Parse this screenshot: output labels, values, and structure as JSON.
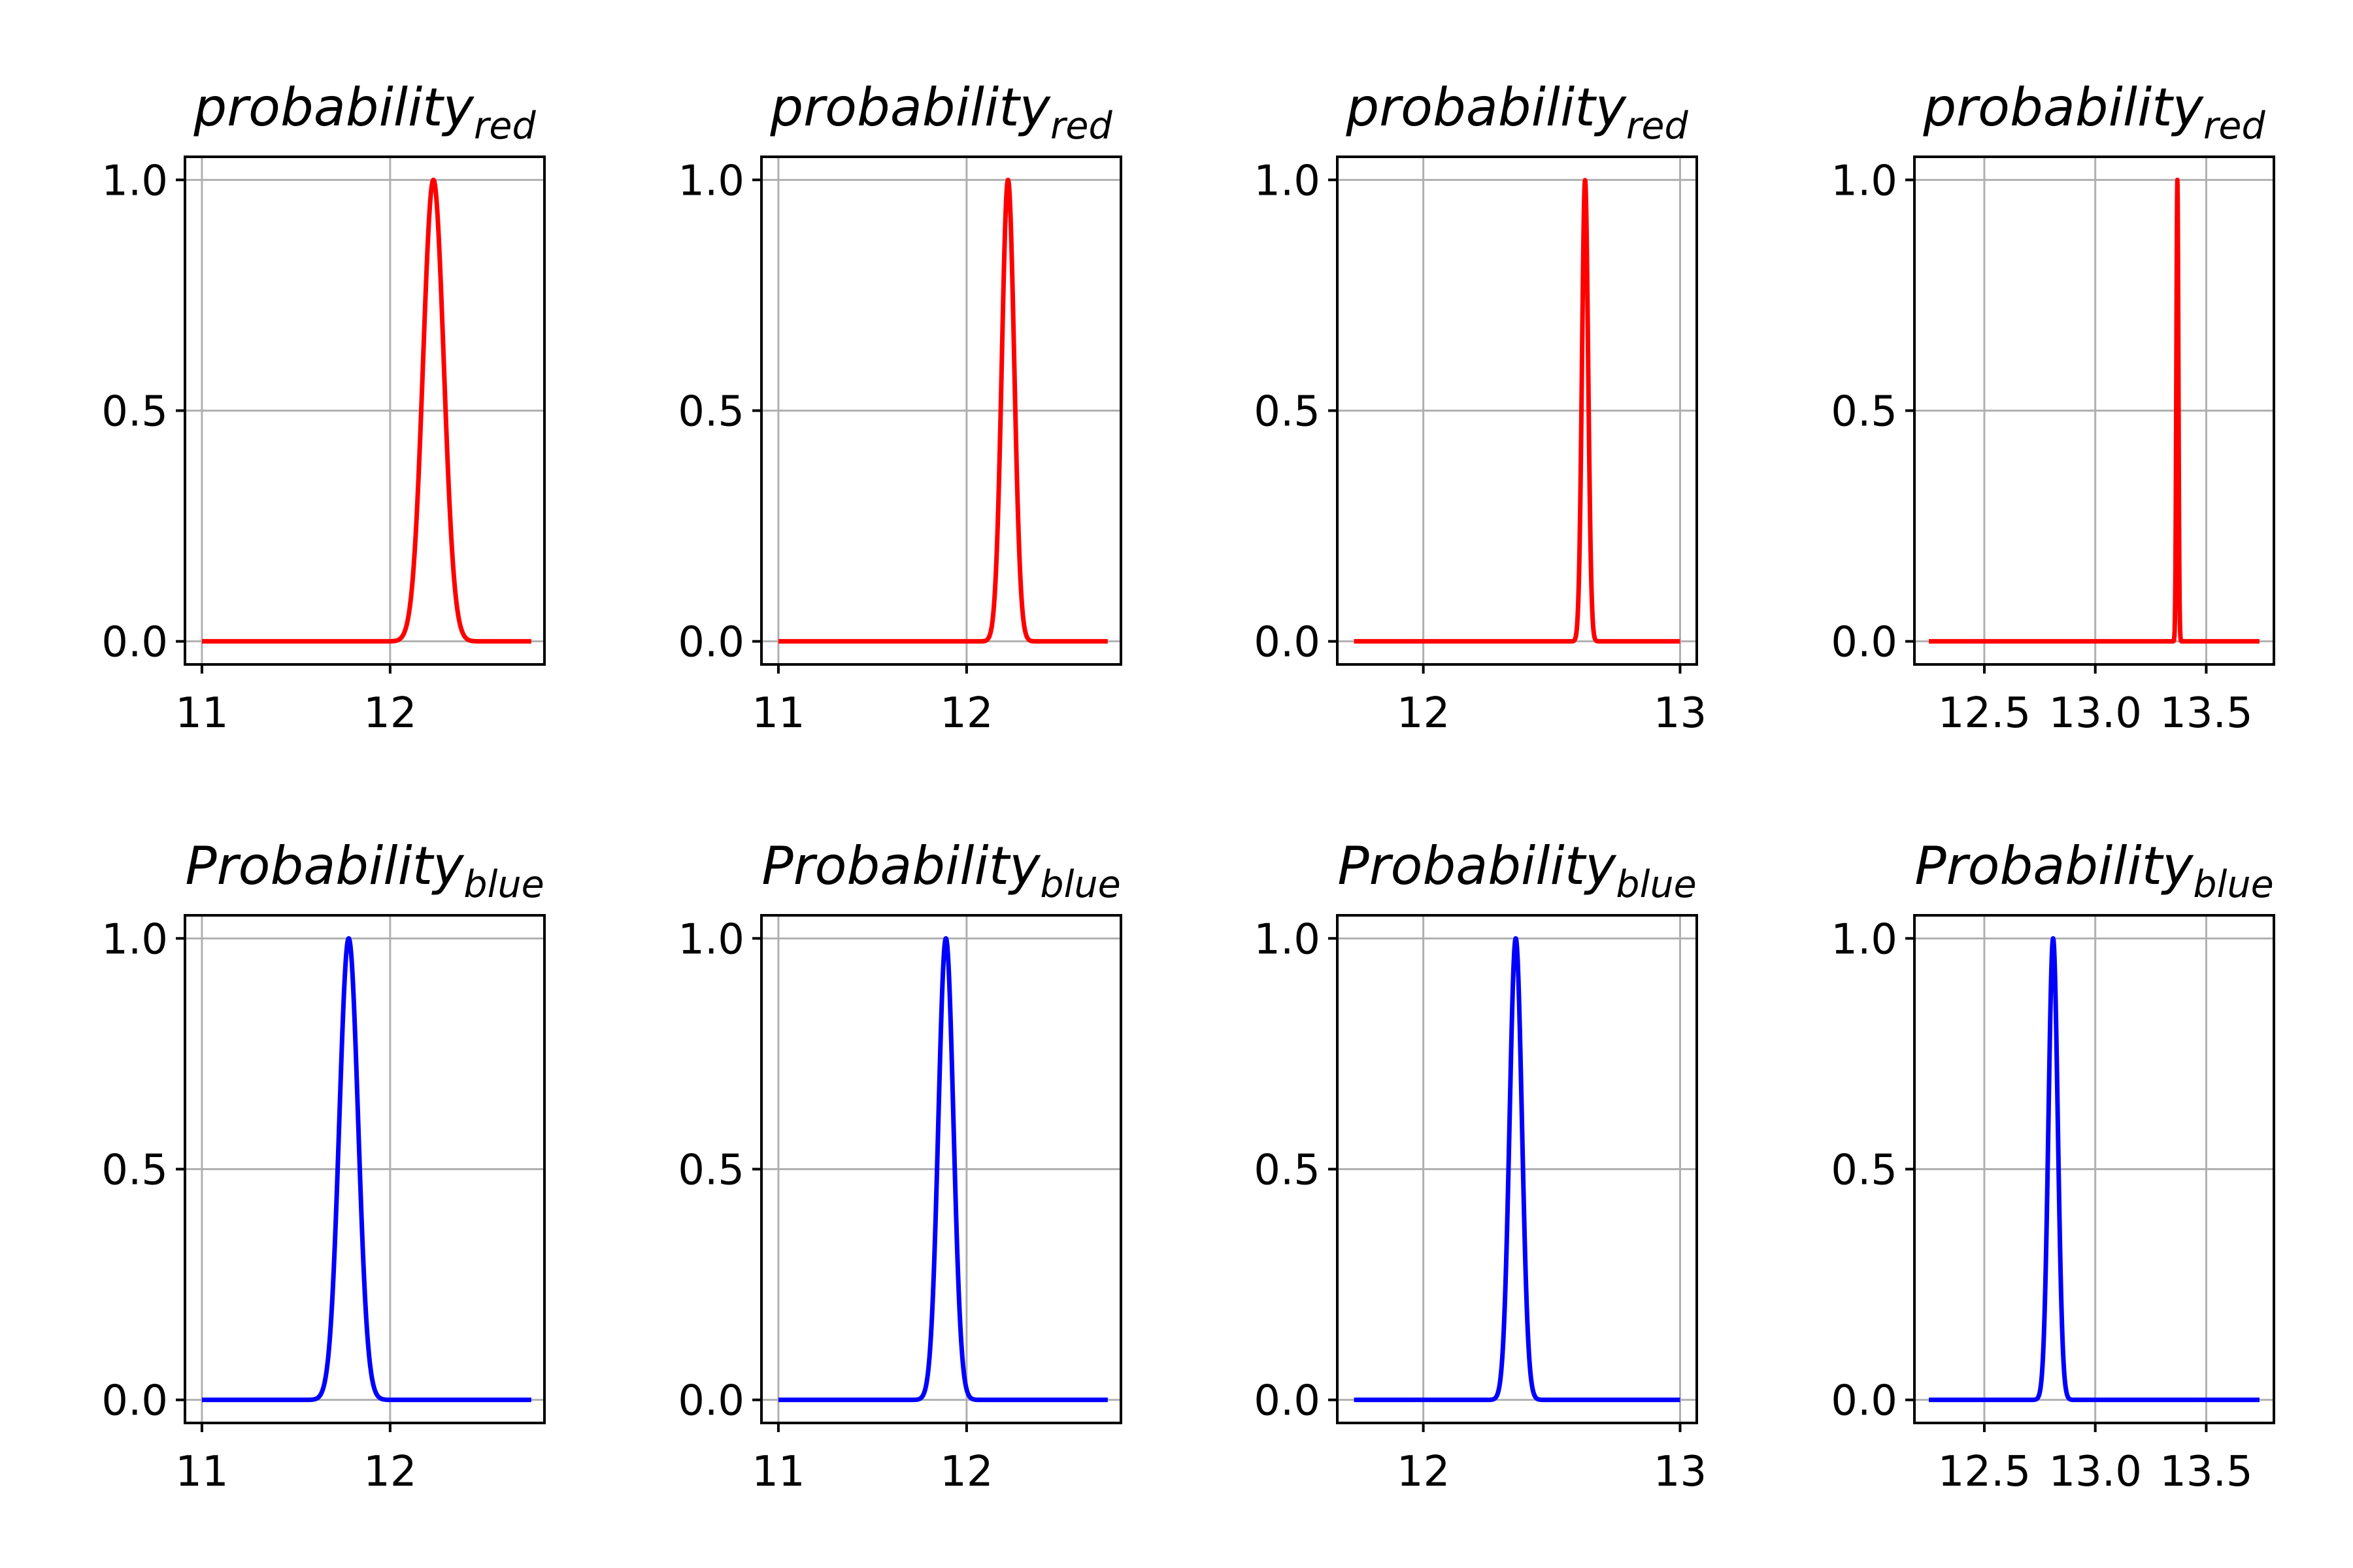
{
  "chart_data": [
    {
      "type": "line",
      "row": 0,
      "col": 0,
      "title": {
        "main": "probability",
        "subscript": "red"
      },
      "color": "#ff0000",
      "xlim": [
        10.91,
        12.82
      ],
      "ylim": [
        -0.05,
        1.05
      ],
      "xticks": [
        {
          "value": 11,
          "label": "11"
        },
        {
          "value": 12,
          "label": "12"
        }
      ],
      "yticks": [
        {
          "value": 0.0,
          "label": "0.0"
        },
        {
          "value": 0.5,
          "label": "0.5"
        },
        {
          "value": 1.0,
          "label": "1.0"
        }
      ],
      "grid": true,
      "curve": {
        "x_start": 11.0,
        "x_end": 12.75,
        "peak_x": 12.23,
        "peak_y": 1.0,
        "sigma": 0.055
      }
    },
    {
      "type": "line",
      "row": 0,
      "col": 1,
      "title": {
        "main": "probability",
        "subscript": "red"
      },
      "color": "#ff0000",
      "xlim": [
        10.91,
        12.82
      ],
      "ylim": [
        -0.05,
        1.05
      ],
      "xticks": [
        {
          "value": 11,
          "label": "11"
        },
        {
          "value": 12,
          "label": "12"
        }
      ],
      "yticks": [
        {
          "value": 0.0,
          "label": "0.0"
        },
        {
          "value": 0.5,
          "label": "0.5"
        },
        {
          "value": 1.0,
          "label": "1.0"
        }
      ],
      "grid": true,
      "curve": {
        "x_start": 11.0,
        "x_end": 12.75,
        "peak_x": 12.22,
        "peak_y": 1.0,
        "sigma": 0.033
      }
    },
    {
      "type": "line",
      "row": 0,
      "col": 2,
      "title": {
        "main": "probability",
        "subscript": "red"
      },
      "color": "#ff0000",
      "xlim": [
        11.665,
        13.065
      ],
      "ylim": [
        -0.05,
        1.05
      ],
      "xticks": [
        {
          "value": 12,
          "label": "12"
        },
        {
          "value": 13,
          "label": "13"
        }
      ],
      "yticks": [
        {
          "value": 0.0,
          "label": "0.0"
        },
        {
          "value": 0.5,
          "label": "0.5"
        },
        {
          "value": 1.0,
          "label": "1.0"
        }
      ],
      "grid": true,
      "curve": {
        "x_start": 11.73,
        "x_end": 13.0,
        "peak_x": 12.63,
        "peak_y": 1.0,
        "sigma": 0.012
      }
    },
    {
      "type": "line",
      "row": 0,
      "col": 3,
      "title": {
        "main": "probability",
        "subscript": "red"
      },
      "color": "#ff0000",
      "xlim": [
        12.185,
        13.805
      ],
      "ylim": [
        -0.05,
        1.05
      ],
      "xticks": [
        {
          "value": 12.5,
          "label": "12.5"
        },
        {
          "value": 13.0,
          "label": "13.0"
        },
        {
          "value": 13.5,
          "label": "13.5"
        }
      ],
      "yticks": [
        {
          "value": 0.0,
          "label": "0.0"
        },
        {
          "value": 0.5,
          "label": "0.5"
        },
        {
          "value": 1.0,
          "label": "1.0"
        }
      ],
      "grid": true,
      "curve": {
        "x_start": 12.25,
        "x_end": 13.74,
        "peak_x": 13.37,
        "peak_y": 1.0,
        "sigma": 0.0045
      }
    },
    {
      "type": "line",
      "row": 1,
      "col": 0,
      "title": {
        "main": "Probability",
        "subscript": "blue"
      },
      "color": "#0000ff",
      "xlim": [
        10.91,
        12.82
      ],
      "ylim": [
        -0.05,
        1.05
      ],
      "xticks": [
        {
          "value": 11,
          "label": "11"
        },
        {
          "value": 12,
          "label": "12"
        }
      ],
      "yticks": [
        {
          "value": 0.0,
          "label": "0.0"
        },
        {
          "value": 0.5,
          "label": "0.5"
        },
        {
          "value": 1.0,
          "label": "1.0"
        }
      ],
      "grid": true,
      "curve": {
        "x_start": 11.0,
        "x_end": 12.75,
        "peak_x": 11.78,
        "peak_y": 1.0,
        "sigma": 0.05
      }
    },
    {
      "type": "line",
      "row": 1,
      "col": 1,
      "title": {
        "main": "Probability",
        "subscript": "blue"
      },
      "color": "#0000ff",
      "xlim": [
        10.91,
        12.82
      ],
      "ylim": [
        -0.05,
        1.05
      ],
      "xticks": [
        {
          "value": 11,
          "label": "11"
        },
        {
          "value": 12,
          "label": "12"
        }
      ],
      "yticks": [
        {
          "value": 0.0,
          "label": "0.0"
        },
        {
          "value": 0.5,
          "label": "0.5"
        },
        {
          "value": 1.0,
          "label": "1.0"
        }
      ],
      "grid": true,
      "curve": {
        "x_start": 11.0,
        "x_end": 12.75,
        "peak_x": 11.89,
        "peak_y": 1.0,
        "sigma": 0.04
      }
    },
    {
      "type": "line",
      "row": 1,
      "col": 2,
      "title": {
        "main": "Probability",
        "subscript": "blue"
      },
      "color": "#0000ff",
      "xlim": [
        11.665,
        13.065
      ],
      "ylim": [
        -0.05,
        1.05
      ],
      "xticks": [
        {
          "value": 12,
          "label": "12"
        },
        {
          "value": 13,
          "label": "13"
        }
      ],
      "yticks": [
        {
          "value": 0.0,
          "label": "0.0"
        },
        {
          "value": 0.5,
          "label": "0.5"
        },
        {
          "value": 1.0,
          "label": "1.0"
        }
      ],
      "grid": true,
      "curve": {
        "x_start": 11.73,
        "x_end": 13.0,
        "peak_x": 12.36,
        "peak_y": 1.0,
        "sigma": 0.024
      }
    },
    {
      "type": "line",
      "row": 1,
      "col": 3,
      "title": {
        "main": "Probability",
        "subscript": "blue"
      },
      "color": "#0000ff",
      "xlim": [
        12.185,
        13.805
      ],
      "ylim": [
        -0.05,
        1.05
      ],
      "xticks": [
        {
          "value": 12.5,
          "label": "12.5"
        },
        {
          "value": 13.0,
          "label": "13.0"
        },
        {
          "value": 13.5,
          "label": "13.5"
        }
      ],
      "yticks": [
        {
          "value": 0.0,
          "label": "0.0"
        },
        {
          "value": 0.5,
          "label": "0.5"
        },
        {
          "value": 1.0,
          "label": "1.0"
        }
      ],
      "grid": true,
      "curve": {
        "x_start": 12.25,
        "x_end": 13.74,
        "peak_x": 12.81,
        "peak_y": 1.0,
        "sigma": 0.021
      }
    }
  ]
}
